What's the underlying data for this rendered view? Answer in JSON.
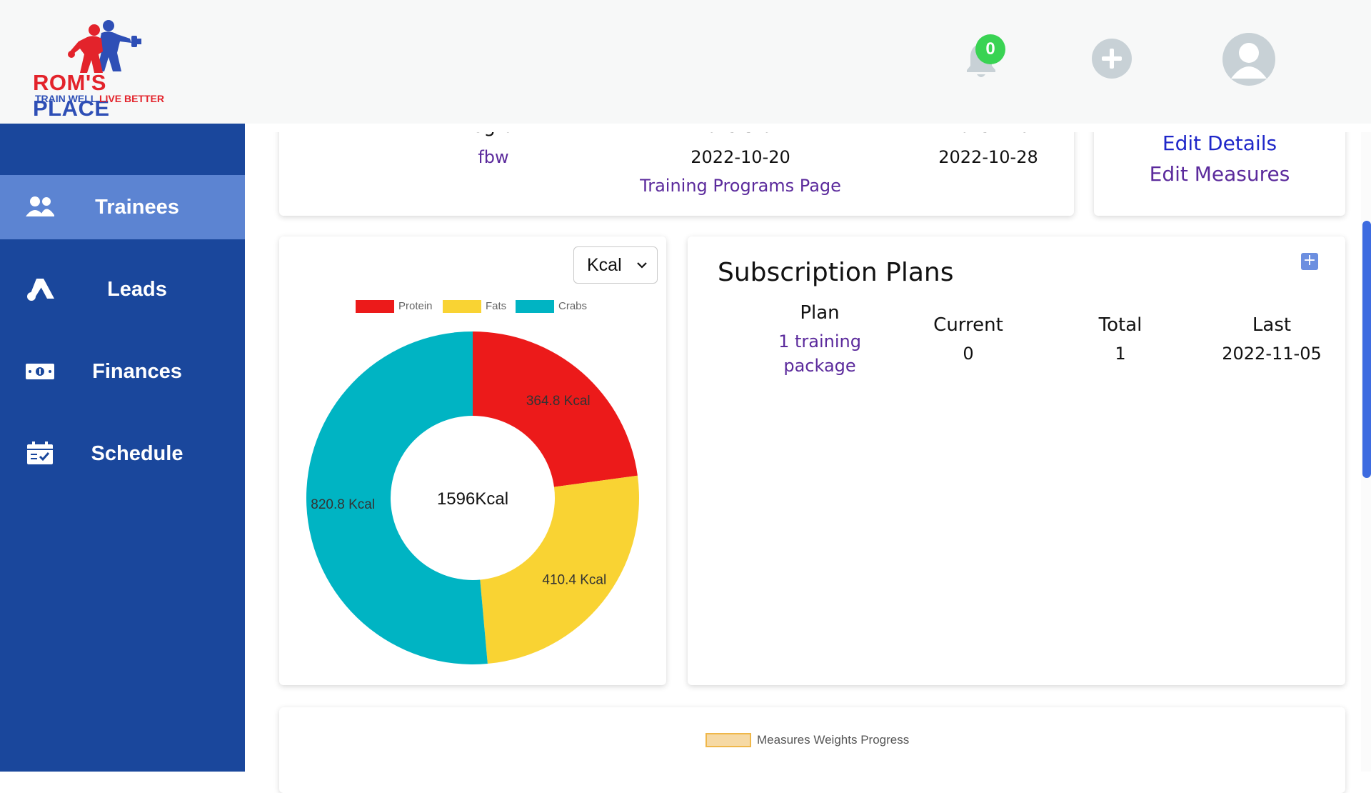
{
  "brand": {
    "name_part1": "ROM'S",
    "name_part2": "PLACE",
    "tagline_part1": "TRAIN WELL",
    "tagline_part2": "LIVE BETTER"
  },
  "header": {
    "notification_count": "0",
    "icons": [
      "bell-icon",
      "plus-circle-icon",
      "user-avatar-icon"
    ]
  },
  "sidebar": {
    "items": [
      {
        "label": "Trainees",
        "icon": "users-icon",
        "active": true
      },
      {
        "label": "Leads",
        "icon": "leads-icon",
        "active": false
      },
      {
        "label": "Finances",
        "icon": "cash-icon",
        "active": false
      },
      {
        "label": "Schedule",
        "icon": "calendar-check-icon",
        "active": false
      }
    ]
  },
  "program_card": {
    "headers": [
      "Program",
      "Date Start",
      "Date End"
    ],
    "program": "fbw",
    "date_start": "2022-10-20",
    "date_end": "2022-10-28",
    "programs_link": "Training Programs Page"
  },
  "links_card": {
    "edit_details": "Edit Details",
    "edit_measures": "Edit Measures"
  },
  "nutrition_chart": {
    "unit_select": "Kcal",
    "center_label": "1596Kcal"
  },
  "chart_data": {
    "type": "pie",
    "categories": [
      "Protein",
      "Fats",
      "Crabs"
    ],
    "values": [
      364.8,
      410.4,
      820.8
    ],
    "data_labels": [
      "364.8 Kcal",
      "410.4 Kcal",
      "820.8 Kcal"
    ],
    "colors": [
      "#ec1a1a",
      "#f9d333",
      "#00b4c3"
    ],
    "legend_position": "top",
    "donut": true
  },
  "subscriptions": {
    "title": "Subscription Plans",
    "headers": [
      "Plan",
      "Current",
      "Total",
      "Last"
    ],
    "rows": [
      {
        "plan_line1": "1 training",
        "plan_line2": "package",
        "current": "0",
        "total": "1",
        "last": "2022-11-05"
      }
    ],
    "add_symbol": "+"
  },
  "measures_chart": {
    "legend": "Measures Weights Progress"
  },
  "colors": {
    "sidebar_bg": "#1a479c",
    "sidebar_active": "#5c84d2",
    "link_purple": "#5b2a9c",
    "link_blue": "#1f27c9",
    "badge_green": "#39d353"
  }
}
